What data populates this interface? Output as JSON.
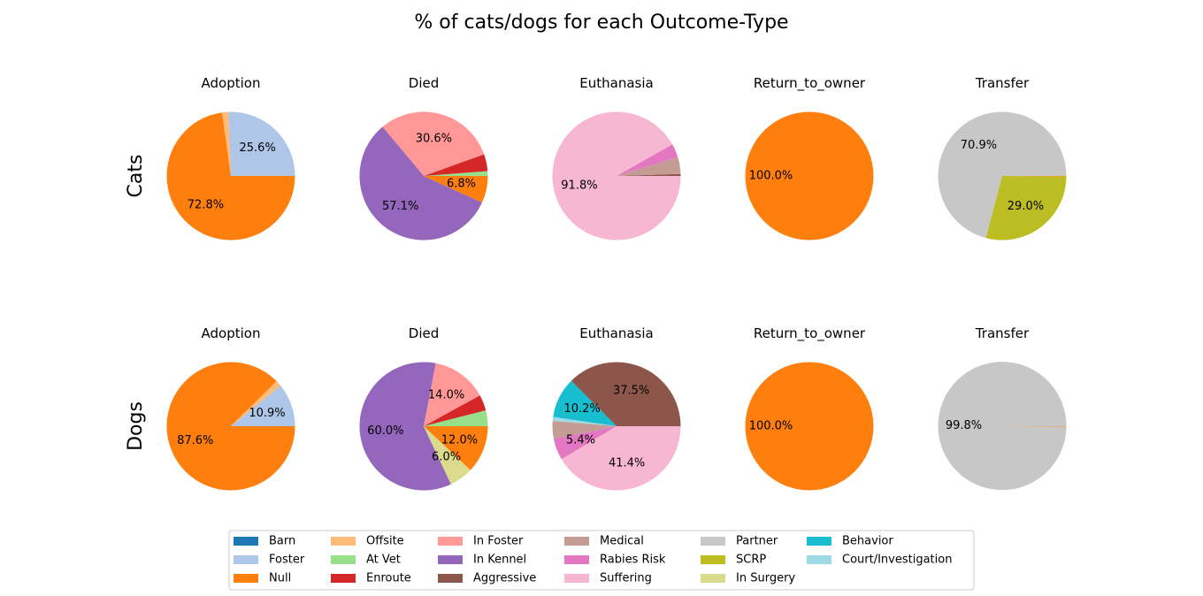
{
  "figure": {
    "title": "% of cats/dogs for each Outcome-Type"
  },
  "rows": [
    {
      "label": "Cats"
    },
    {
      "label": "Dogs"
    }
  ],
  "legend": {
    "placement": "bottom-center",
    "columns": 6,
    "entries": [
      {
        "label": "Barn",
        "color": "#1f77b4"
      },
      {
        "label": "Foster",
        "color": "#aec7e8"
      },
      {
        "label": "Null",
        "color": "#ff7f0e"
      },
      {
        "label": "Offsite",
        "color": "#ffbb78"
      },
      {
        "label": "At Vet",
        "color": "#98df8a"
      },
      {
        "label": "Enroute",
        "color": "#d62728"
      },
      {
        "label": "In Foster",
        "color": "#ff9896"
      },
      {
        "label": "In Kennel",
        "color": "#9467bd"
      },
      {
        "label": "Aggressive",
        "color": "#8c564b"
      },
      {
        "label": "Medical",
        "color": "#c49c94"
      },
      {
        "label": "Rabies Risk",
        "color": "#e377c2"
      },
      {
        "label": "Suffering",
        "color": "#f7b6d2"
      },
      {
        "label": "Partner",
        "color": "#c7c7c7"
      },
      {
        "label": "SCRP",
        "color": "#bcbd22"
      },
      {
        "label": "In Surgery",
        "color": "#dbdb8d"
      },
      {
        "label": "Behavior",
        "color": "#17becf"
      },
      {
        "label": "Court/Investigation",
        "color": "#9edae5"
      }
    ]
  },
  "chart_data": [
    {
      "type": "pie",
      "row": "Cats",
      "title": "Adoption",
      "slices": [
        {
          "label": "Foster",
          "value": 25.6,
          "color": "#aec7e8",
          "pct_label": "25.6%"
        },
        {
          "label": "Offsite",
          "value": 1.6,
          "color": "#ffbb78",
          "pct_label": ""
        },
        {
          "label": "Null",
          "value": 72.8,
          "color": "#ff7f0e",
          "pct_label": "72.8%"
        }
      ]
    },
    {
      "type": "pie",
      "row": "Cats",
      "title": "Died",
      "slices": [
        {
          "label": "At Vet",
          "value": 1.2,
          "color": "#98df8a",
          "pct_label": ""
        },
        {
          "label": "Enroute",
          "value": 4.3,
          "color": "#d62728",
          "pct_label": ""
        },
        {
          "label": "In Foster",
          "value": 30.6,
          "color": "#ff9896",
          "pct_label": "30.6%"
        },
        {
          "label": "In Kennel",
          "value": 57.1,
          "color": "#9467bd",
          "pct_label": "57.1%"
        },
        {
          "label": "Null",
          "value": 6.8,
          "color": "#ff7f0e",
          "pct_label": "6.8%"
        }
      ]
    },
    {
      "type": "pie",
      "row": "Cats",
      "title": "Euthanasia",
      "slices": [
        {
          "label": "Aggressive",
          "value": 0.5,
          "color": "#8c564b",
          "pct_label": ""
        },
        {
          "label": "Medical",
          "value": 4.2,
          "color": "#c49c94",
          "pct_label": ""
        },
        {
          "label": "Rabies Risk",
          "value": 3.5,
          "color": "#e377c2",
          "pct_label": ""
        },
        {
          "label": "Suffering",
          "value": 91.8,
          "color": "#f7b6d2",
          "pct_label": "91.8%"
        }
      ]
    },
    {
      "type": "pie",
      "row": "Cats",
      "title": "Return_to_owner",
      "slices": [
        {
          "label": "Null",
          "value": 100.0,
          "color": "#ff7f0e",
          "pct_label": "100.0%"
        }
      ]
    },
    {
      "type": "pie",
      "row": "Cats",
      "title": "Transfer",
      "slices": [
        {
          "label": "Partner",
          "value": 70.9,
          "color": "#c7c7c7",
          "pct_label": "70.9%"
        },
        {
          "label": "SCRP",
          "value": 29.0,
          "color": "#bcbd22",
          "pct_label": "29.0%"
        },
        {
          "label": "Null",
          "value": 0.1,
          "color": "#ff7f0e",
          "pct_label": ""
        }
      ]
    },
    {
      "type": "pie",
      "row": "Dogs",
      "title": "Adoption",
      "slices": [
        {
          "label": "Foster",
          "value": 10.9,
          "color": "#aec7e8",
          "pct_label": "10.9%"
        },
        {
          "label": "Offsite",
          "value": 1.5,
          "color": "#ffbb78",
          "pct_label": ""
        },
        {
          "label": "Null",
          "value": 87.6,
          "color": "#ff7f0e",
          "pct_label": "87.6%"
        }
      ]
    },
    {
      "type": "pie",
      "row": "Dogs",
      "title": "Died",
      "slices": [
        {
          "label": "At Vet",
          "value": 4.0,
          "color": "#98df8a",
          "pct_label": ""
        },
        {
          "label": "Enroute",
          "value": 4.0,
          "color": "#d62728",
          "pct_label": ""
        },
        {
          "label": "In Foster",
          "value": 14.0,
          "color": "#ff9896",
          "pct_label": "14.0%"
        },
        {
          "label": "In Kennel",
          "value": 60.0,
          "color": "#9467bd",
          "pct_label": "60.0%"
        },
        {
          "label": "In Surgery",
          "value": 6.0,
          "color": "#dbdb8d",
          "pct_label": "6.0%"
        },
        {
          "label": "Null",
          "value": 12.0,
          "color": "#ff7f0e",
          "pct_label": "12.0%"
        }
      ]
    },
    {
      "type": "pie",
      "row": "Dogs",
      "title": "Euthanasia",
      "slices": [
        {
          "label": "Aggressive",
          "value": 37.5,
          "color": "#8c564b",
          "pct_label": "37.5%"
        },
        {
          "label": "Behavior",
          "value": 10.2,
          "color": "#17becf",
          "pct_label": "10.2%"
        },
        {
          "label": "Court/Investigation",
          "value": 1.0,
          "color": "#9edae5",
          "pct_label": ""
        },
        {
          "label": "Medical",
          "value": 4.5,
          "color": "#c49c94",
          "pct_label": ""
        },
        {
          "label": "Rabies Risk",
          "value": 5.4,
          "color": "#e377c2",
          "pct_label": "5.4%"
        },
        {
          "label": "Suffering",
          "value": 41.4,
          "color": "#f7b6d2",
          "pct_label": "41.4%"
        }
      ]
    },
    {
      "type": "pie",
      "row": "Dogs",
      "title": "Return_to_owner",
      "slices": [
        {
          "label": "Null",
          "value": 100.0,
          "color": "#ff7f0e",
          "pct_label": "100.0%"
        }
      ]
    },
    {
      "type": "pie",
      "row": "Dogs",
      "title": "Transfer",
      "slices": [
        {
          "label": "Partner",
          "value": 99.8,
          "color": "#c7c7c7",
          "pct_label": "99.8%"
        },
        {
          "label": "Offsite",
          "value": 0.1,
          "color": "#ffbb78",
          "pct_label": ""
        },
        {
          "label": "Null",
          "value": 0.1,
          "color": "#ff7f0e",
          "pct_label": ""
        }
      ]
    }
  ]
}
